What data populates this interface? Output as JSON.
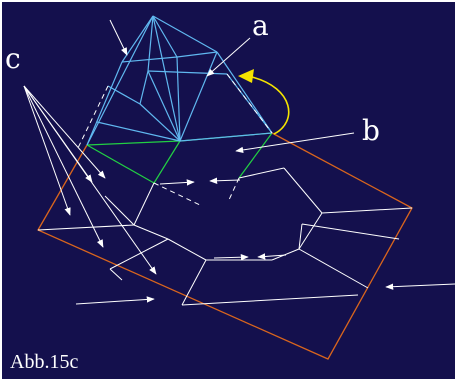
{
  "figure": {
    "caption": "Abb.15c",
    "labels": {
      "a": "a",
      "b": "b",
      "c": "c"
    },
    "colors": {
      "background": "#14104d",
      "roof_edges": "#60b8f0",
      "ring_edges": "#22d043",
      "ground_outline": "#d9651d",
      "interior_lines": "#ffffff",
      "rotation_arrow": "#f5e400",
      "arrows": "#ffffff"
    }
  }
}
